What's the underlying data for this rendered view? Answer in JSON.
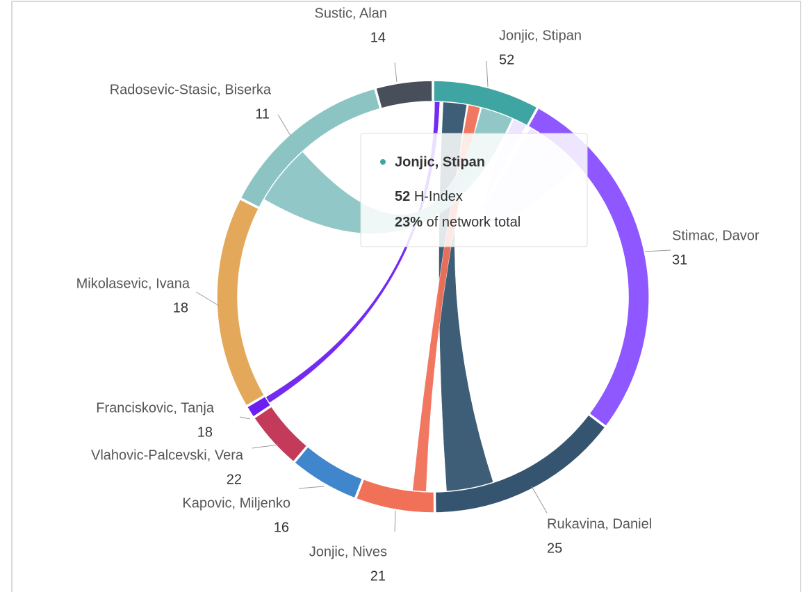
{
  "nodes": [
    {
      "label": "Jonjic, Stipan",
      "value": "52",
      "color": "#3fa5a3"
    },
    {
      "label": "Stimac, Davor",
      "value": "31",
      "color": "#8f57ff"
    },
    {
      "label": "Rukavina, Daniel",
      "value": "25",
      "color": "#34546f"
    },
    {
      "label": "Jonjic, Nives",
      "value": "21",
      "color": "#f07058"
    },
    {
      "label": "Kapovic, Miljenko",
      "value": "16",
      "color": "#3f86cc"
    },
    {
      "label": "Vlahovic-Palcevski, Vera",
      "value": "22",
      "color": "#c33a5a"
    },
    {
      "label": "Franciskovic, Tanja",
      "value": "18",
      "color": "#6b1ff0"
    },
    {
      "label": "Mikolasevic, Ivana",
      "value": "18",
      "color": "#e4a85a"
    },
    {
      "label": "Radosevic-Stasic, Biserka",
      "value": "11",
      "color": "#8cc4c4"
    },
    {
      "label": "Sustic, Alan",
      "value": "14",
      "color": "#484f5a"
    }
  ],
  "tooltip": {
    "metric": "H-Index",
    "share": "23%",
    "share_text": "of network total"
  }
}
